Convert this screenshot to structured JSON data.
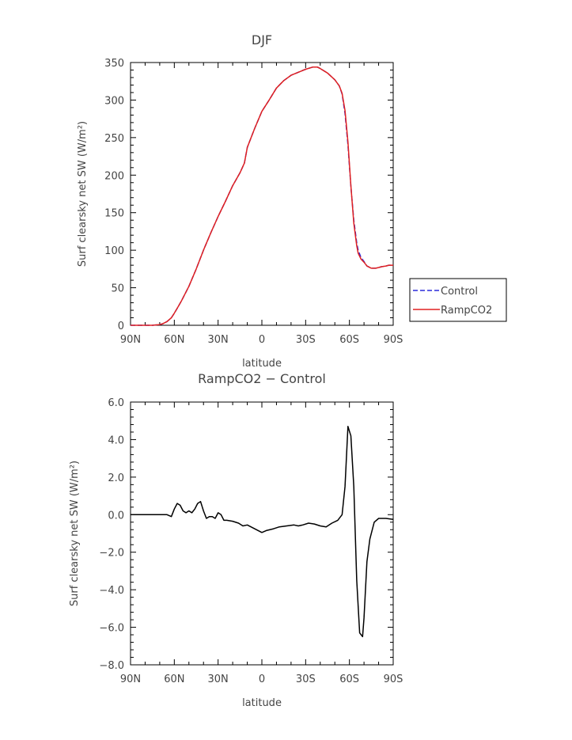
{
  "chart_data": [
    {
      "type": "line",
      "title": "DJF",
      "xlabel": "latitude",
      "ylabel": "Surf clearsky net SW (W/m²)",
      "xlim": [
        -90,
        90
      ],
      "ylim": [
        0,
        350
      ],
      "x_ticks": [
        {
          "value": -90,
          "label": "90N"
        },
        {
          "value": -60,
          "label": "60N"
        },
        {
          "value": -30,
          "label": "30N"
        },
        {
          "value": 0,
          "label": "0"
        },
        {
          "value": 30,
          "label": "30S"
        },
        {
          "value": 60,
          "label": "60S"
        },
        {
          "value": 90,
          "label": "90S"
        }
      ],
      "y_ticks": [
        {
          "value": 0,
          "label": "0"
        },
        {
          "value": 50,
          "label": "50"
        },
        {
          "value": 100,
          "label": "100"
        },
        {
          "value": 150,
          "label": "150"
        },
        {
          "value": 200,
          "label": "200"
        },
        {
          "value": 250,
          "label": "250"
        },
        {
          "value": 300,
          "label": "300"
        },
        {
          "value": 350,
          "label": "350"
        }
      ],
      "legend_position": "right",
      "x": [
        -90,
        -80,
        -75,
        -70,
        -68,
        -65,
        -62,
        -60,
        -57,
        -55,
        -50,
        -45,
        -40,
        -35,
        -30,
        -25,
        -20,
        -15,
        -12,
        -10,
        -5,
        0,
        5,
        10,
        15,
        20,
        25,
        30,
        35,
        38,
        40,
        45,
        50,
        53,
        55,
        57,
        59,
        61,
        63,
        65,
        66,
        68,
        70,
        72,
        75,
        78,
        80,
        82,
        85,
        87,
        90
      ],
      "series": [
        {
          "name": "Control",
          "color": "#2a2adc",
          "dash": "dashed",
          "values": [
            0,
            0,
            0,
            1,
            2,
            5,
            10,
            16,
            26,
            33,
            52,
            75,
            100,
            123,
            145,
            165,
            186,
            203,
            216,
            237,
            262,
            285,
            300,
            316,
            326,
            333,
            337,
            341,
            344,
            344,
            342,
            336,
            327,
            319,
            308,
            282,
            240,
            185,
            140,
            110,
            100,
            90,
            85,
            79,
            76,
            76,
            77,
            78,
            79,
            80,
            80
          ]
        },
        {
          "name": "RampCO2",
          "color": "#e02020",
          "dash": "solid",
          "values": [
            0,
            0,
            0,
            1,
            2,
            5,
            10,
            16,
            26,
            33,
            52,
            75,
            100,
            123,
            145,
            165,
            186,
            203,
            216,
            237,
            262,
            285,
            300,
            316,
            326,
            333,
            337,
            341,
            344,
            344,
            342,
            336,
            327,
            319,
            309,
            286,
            244,
            186,
            136,
            106,
            96,
            88,
            84,
            79,
            76,
            76,
            77,
            78,
            79,
            80,
            80
          ]
        }
      ]
    },
    {
      "type": "line",
      "title": "RampCO2 − Control",
      "xlabel": "latitude",
      "ylabel": "Surf clearsky net SW (W/m²)",
      "xlim": [
        -90,
        90
      ],
      "ylim": [
        -8,
        6
      ],
      "x_ticks": [
        {
          "value": -90,
          "label": "90N"
        },
        {
          "value": -60,
          "label": "60N"
        },
        {
          "value": -30,
          "label": "30N"
        },
        {
          "value": 0,
          "label": "0"
        },
        {
          "value": 30,
          "label": "30S"
        },
        {
          "value": 60,
          "label": "60S"
        },
        {
          "value": 90,
          "label": "90S"
        }
      ],
      "y_ticks": [
        {
          "value": -8,
          "label": "−8.0"
        },
        {
          "value": -6,
          "label": "−6.0"
        },
        {
          "value": -4,
          "label": "−4.0"
        },
        {
          "value": -2,
          "label": "−2.0"
        },
        {
          "value": 0,
          "label": "0.0"
        },
        {
          "value": 2,
          "label": "2.0"
        },
        {
          "value": 4,
          "label": "4.0"
        },
        {
          "value": 6,
          "label": "6.0"
        }
      ],
      "series": [
        {
          "color": "#000000",
          "x": [
            -90,
            -80,
            -70,
            -65,
            -62,
            -60,
            -58,
            -56,
            -54,
            -52,
            -50,
            -48,
            -46,
            -44,
            -42,
            -40,
            -38,
            -36,
            -34,
            -32,
            -30,
            -28,
            -26,
            -24,
            -20,
            -16,
            -13,
            -10,
            -5,
            0,
            3,
            8,
            12,
            17,
            22,
            25,
            28,
            32,
            36,
            40,
            44,
            48,
            52,
            55,
            57,
            59,
            61,
            63,
            65,
            67,
            69,
            70,
            72,
            74,
            77,
            80,
            85,
            90
          ],
          "values": [
            0,
            0,
            0,
            0,
            -0.1,
            0.3,
            0.6,
            0.5,
            0.2,
            0.1,
            0.2,
            0.1,
            0.3,
            0.6,
            0.7,
            0.2,
            -0.2,
            -0.1,
            -0.1,
            -0.2,
            0.1,
            0.0,
            -0.3,
            -0.3,
            -0.35,
            -0.45,
            -0.6,
            -0.55,
            -0.75,
            -0.95,
            -0.85,
            -0.75,
            -0.65,
            -0.6,
            -0.55,
            -0.6,
            -0.55,
            -0.45,
            -0.5,
            -0.6,
            -0.65,
            -0.45,
            -0.3,
            0.0,
            1.5,
            4.7,
            4.2,
            1.5,
            -3.5,
            -6.3,
            -6.5,
            -5.5,
            -2.5,
            -1.3,
            -0.4,
            -0.2,
            -0.2,
            -0.25
          ]
        }
      ]
    }
  ]
}
